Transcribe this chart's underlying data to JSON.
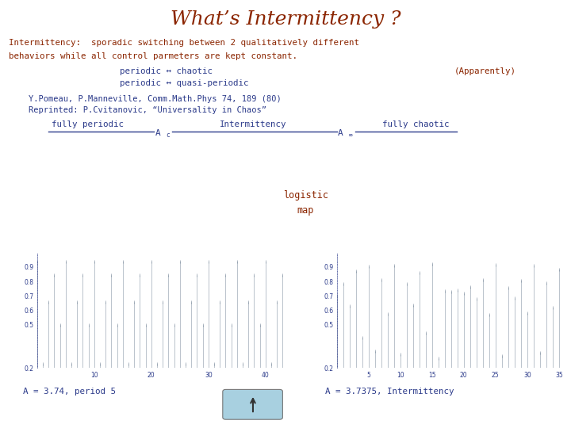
{
  "title": "What’s Intermittency ?",
  "title_color": "#8B2500",
  "title_fontsize": 18,
  "bg_color": "#FFFFFF",
  "text_color_dark": "#2B3A8A",
  "text_color_orange": "#8B2500",
  "text_color_gray": "#555555",
  "line1": "Intermittency:  sporadic switching between 2 qualitatively different",
  "line2": "behaviors while all control parmeters are kept constant.",
  "bullet1": "periodic ↔ chaotic",
  "bullet2": "periodic ↔ quasi-periodic",
  "apparently": "(Apparently)",
  "ref1": "Y.Pomeau, P.Manneville, Comm.Math.Phys 74, 189 (80)",
  "ref2": "Reprinted: P.Cvitanovic, “Universality in Chaos”",
  "label_periodic": "fully periodic",
  "label_intermittency": "Intermittency",
  "label_chaotic": "fully chaotic",
  "logistic": "logistic",
  "map": "map",
  "bottom_left": "A = 3.74, period 5",
  "bottom_right": "A = 3.7375, Intermittency",
  "arrow_bg": "#A8D0E0",
  "plot_color": "#778899"
}
